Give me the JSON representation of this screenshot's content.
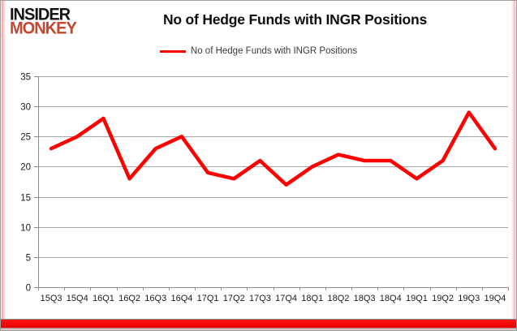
{
  "logo": {
    "line1": "INSIDER",
    "line2": "MONKEY",
    "color_line1": "#141414",
    "color_line2": "#c6452c"
  },
  "header": {
    "title": "No of Hedge Funds with INGR Positions"
  },
  "legend": {
    "label": "No of Hedge Funds with INGR Positions",
    "line_color": "#ff0000"
  },
  "colors": {
    "series_line": "#ff0000",
    "gridline": "#a6a6a6",
    "axis": "#8c8c8c",
    "tick_label": "#1a1a1a",
    "brand_bar": "#f20000"
  },
  "chart_data": {
    "type": "line",
    "title": "No of Hedge Funds with INGR Positions",
    "categories": [
      "15Q3",
      "15Q4",
      "16Q1",
      "16Q2",
      "16Q3",
      "16Q4",
      "17Q1",
      "17Q2",
      "17Q3",
      "17Q4",
      "18Q1",
      "18Q2",
      "18Q3",
      "18Q4",
      "19Q1",
      "19Q2",
      "19Q3",
      "19Q4"
    ],
    "series": [
      {
        "name": "No of Hedge Funds with INGR Positions",
        "color": "#ff0000",
        "values": [
          23,
          25,
          28,
          18,
          23,
          25,
          19,
          18,
          21,
          17,
          20,
          22,
          21,
          21,
          18,
          21,
          29,
          23
        ]
      }
    ],
    "xlabel": "",
    "ylabel": "",
    "ylim": [
      0,
      35
    ],
    "yticks": [
      0,
      5,
      10,
      15,
      20,
      25,
      30,
      35
    ],
    "grid": true,
    "legend_position": "top-center"
  }
}
